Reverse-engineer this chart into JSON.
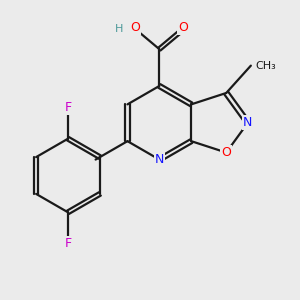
{
  "background_color": "#ebebeb",
  "bond_color": "#1a1a1a",
  "atom_colors": {
    "N": "#1414ff",
    "O": "#ff0000",
    "F": "#cc00cc",
    "C": "#1a1a1a",
    "H": "#4d9999"
  },
  "figsize": [
    3.0,
    3.0
  ],
  "dpi": 100
}
